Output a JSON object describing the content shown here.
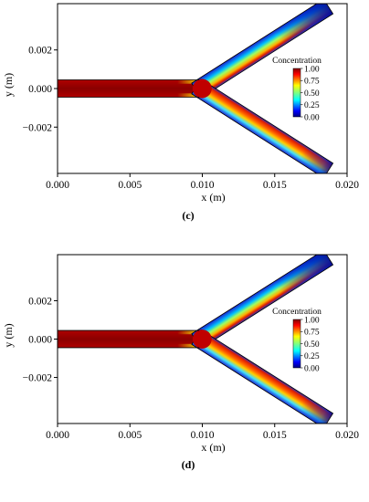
{
  "chart_data": [
    {
      "type": "heatmap",
      "panel_label": "(c)",
      "xlabel": "x (m)",
      "ylabel": "y (m)",
      "xlim": [
        0.0,
        0.02
      ],
      "ylim": [
        -0.0044,
        0.0044
      ],
      "x_ticks": [
        "0.000",
        "0.005",
        "0.010",
        "0.015",
        "0.020"
      ],
      "y_ticks": [
        "0.002",
        "0.000",
        "−0.002"
      ],
      "colorbar": {
        "title": "Concentration",
        "ticks": [
          "1.00",
          "0.75",
          "0.50",
          "0.25",
          "0.00"
        ],
        "range": [
          0.0,
          1.0
        ]
      },
      "geometry": {
        "inlet_half_width": 0.00045,
        "junction_x": 0.0098,
        "branch_end_x": 0.0186,
        "branch_end_y_upper": 0.0042,
        "branch_end_y_lower": -0.0042
      },
      "fields": {
        "inlet_concentration": 1.0,
        "upper_branch_high_band": "inner wall, x 0.011-0.0165",
        "lower_branch_high_band": "inner wall, x 0.010-0.018"
      }
    },
    {
      "type": "heatmap",
      "panel_label": "(d)",
      "xlabel": "x (m)",
      "ylabel": "y (m)",
      "xlim": [
        0.0,
        0.02
      ],
      "ylim": [
        -0.0044,
        0.0044
      ],
      "x_ticks": [
        "0.000",
        "0.005",
        "0.010",
        "0.015",
        "0.020"
      ],
      "y_ticks": [
        "0.002",
        "0.000",
        "−0.002"
      ],
      "colorbar": {
        "title": "Concentration",
        "ticks": [
          "1.00",
          "0.75",
          "0.50",
          "0.25",
          "0.00"
        ],
        "range": [
          0.0,
          1.0
        ]
      },
      "geometry": {
        "inlet_half_width": 0.00045,
        "junction_x": 0.0098,
        "branch_end_x": 0.0186,
        "branch_end_y_upper": 0.0042,
        "branch_end_y_lower": -0.0042
      },
      "fields": {
        "inlet_concentration": 1.0,
        "upper_branch_high_band": "inner wall, x 0.011-0.0175",
        "lower_branch_high_band": "inner wall, x 0.010-0.0185"
      }
    }
  ]
}
